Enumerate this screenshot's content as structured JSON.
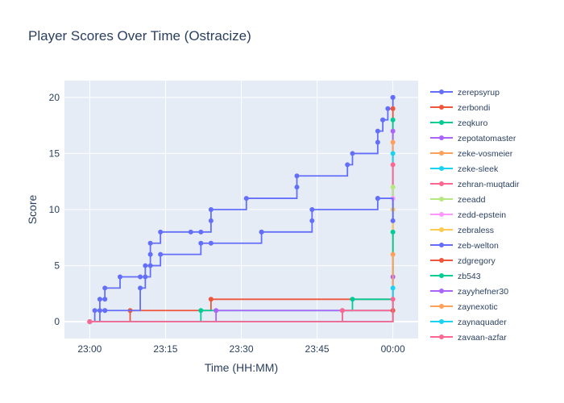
{
  "chart_data": {
    "type": "line",
    "line_shape": "step",
    "title": "Player Scores Over Time (Ostracize)",
    "xlabel": "Time (HH:MM)",
    "ylabel": "Score",
    "xlim": [
      "22:55",
      "00:05"
    ],
    "ylim": [
      -1.5,
      21.5
    ],
    "x_ticks": [
      "23:00",
      "23:15",
      "23:30",
      "23:45",
      "00:00"
    ],
    "y_ticks": [
      0,
      5,
      10,
      15,
      20
    ],
    "grid": true,
    "legend_position": "right",
    "series": [
      {
        "name": "zerepsyrup",
        "color": "#636efa",
        "x": [
          "23:00",
          "23:01",
          "23:02",
          "23:03",
          "23:03",
          "23:06",
          "23:10",
          "23:11",
          "23:12",
          "23:12",
          "23:14",
          "23:20",
          "23:22",
          "23:24",
          "23:24",
          "23:31",
          "23:41",
          "23:41",
          "23:51",
          "23:52",
          "23:57",
          "23:57",
          "23:58",
          "23:58",
          "23:59",
          "00:00",
          "00:00",
          "00:00"
        ],
        "y": [
          0,
          1,
          2,
          2,
          3,
          4,
          4,
          5,
          6,
          7,
          8,
          8,
          8,
          9,
          10,
          11,
          12,
          13,
          14,
          15,
          16,
          17,
          18,
          18,
          19,
          20,
          20,
          20
        ]
      },
      {
        "name": "zerbondi",
        "color": "#ef553b",
        "x": [
          "23:00",
          "23:08",
          "23:24",
          "00:00"
        ],
        "y": [
          0,
          1,
          2,
          19
        ]
      },
      {
        "name": "zeqkuro",
        "color": "#00cc96",
        "x": [
          "23:00",
          "23:22",
          "23:52",
          "00:00"
        ],
        "y": [
          0,
          1,
          2,
          18
        ]
      },
      {
        "name": "zepotatomaster",
        "color": "#ab63fa",
        "x": [
          "23:00",
          "23:25",
          "00:00"
        ],
        "y": [
          0,
          1,
          17
        ]
      },
      {
        "name": "zeke-vosmeier",
        "color": "#ffa15a",
        "x": [
          "23:00",
          "23:50",
          "00:00"
        ],
        "y": [
          0,
          1,
          16
        ]
      },
      {
        "name": "zeke-sleek",
        "color": "#19d3f3",
        "x": [
          "23:00",
          "23:50",
          "00:00"
        ],
        "y": [
          0,
          1,
          15
        ]
      },
      {
        "name": "zehran-muqtadir",
        "color": "#ff6692",
        "x": [
          "23:00",
          "23:50",
          "00:00"
        ],
        "y": [
          0,
          1,
          14
        ]
      },
      {
        "name": "zeeadd",
        "color": "#b6e880",
        "x": [
          "23:00",
          "00:00"
        ],
        "y": [
          0,
          12
        ]
      },
      {
        "name": "zedd-epstein",
        "color": "#ff97ff",
        "x": [
          "23:00",
          "00:00"
        ],
        "y": [
          0,
          11
        ]
      },
      {
        "name": "zebraless",
        "color": "#fecb52",
        "x": [
          "23:00",
          "00:00"
        ],
        "y": [
          0,
          10
        ]
      },
      {
        "name": "zeb-welton",
        "color": "#636efa",
        "x": [
          "23:00",
          "23:02",
          "23:03",
          "23:03",
          "23:10",
          "23:11",
          "23:12",
          "23:14",
          "23:22",
          "23:24",
          "23:34",
          "23:34",
          "23:44",
          "23:44",
          "23:57",
          "23:57",
          "00:00"
        ],
        "y": [
          0,
          1,
          1,
          1,
          3,
          4,
          5,
          6,
          7,
          7,
          8,
          8,
          9,
          10,
          11,
          11,
          9
        ]
      },
      {
        "name": "zdgregory",
        "color": "#ef553b",
        "x": [
          "23:00",
          "00:00"
        ],
        "y": [
          0,
          1
        ]
      },
      {
        "name": "zb543",
        "color": "#00cc96",
        "x": [
          "23:00",
          "00:00"
        ],
        "y": [
          0,
          8
        ]
      },
      {
        "name": "zayyhefner30",
        "color": "#ab63fa",
        "x": [
          "23:00",
          "00:00"
        ],
        "y": [
          0,
          4
        ]
      },
      {
        "name": "zaynexotic",
        "color": "#ffa15a",
        "x": [
          "23:00",
          "00:00"
        ],
        "y": [
          0,
          6
        ]
      },
      {
        "name": "zaynaquader",
        "color": "#19d3f3",
        "x": [
          "23:00",
          "00:00"
        ],
        "y": [
          0,
          3
        ]
      },
      {
        "name": "zayaan-azfar",
        "color": "#ff6692",
        "x": [
          "23:00",
          "00:00"
        ],
        "y": [
          0,
          2
        ]
      }
    ]
  }
}
